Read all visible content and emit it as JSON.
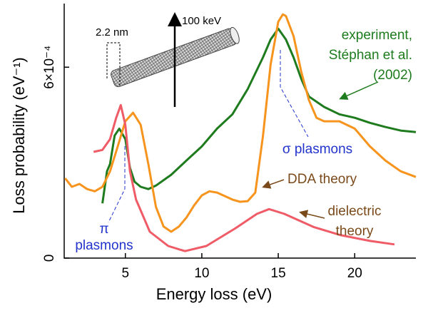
{
  "chart_data": {
    "type": "line",
    "xlabel": "Energy loss (eV)",
    "ylabel": "Loss probability (eV⁻¹)",
    "xlim": [
      1,
      24
    ],
    "xticks": [
      5,
      10,
      15,
      20
    ],
    "ylim": [
      0,
      0.0008
    ],
    "yticks": [
      0,
      {
        "value": 0.0006,
        "label": "6×10⁻⁴"
      }
    ],
    "series": [
      {
        "color": "#1e7b1e",
        "x": [
          3.5,
          3.8,
          4,
          4.3,
          4.6,
          5,
          5.3,
          5.6,
          6,
          6.5,
          7,
          8,
          9,
          10,
          11,
          12,
          13,
          14,
          14.5,
          15,
          15.5,
          16,
          16.5,
          17,
          18,
          19,
          20,
          21,
          22,
          23,
          24
        ],
        "values": [
          0.000172,
          0.000273,
          0.000296,
          0.000385,
          0.000407,
          0.000374,
          0.000284,
          0.00024,
          0.000224,
          0.000217,
          0.000228,
          0.000262,
          0.000307,
          0.000351,
          0.000407,
          0.000452,
          0.000531,
          0.000631,
          0.000687,
          0.000721,
          0.000687,
          0.000631,
          0.000564,
          0.000508,
          0.000475,
          0.000452,
          0.000441,
          0.000425,
          0.000412,
          0.000401,
          0.000396
        ]
      },
      {
        "color": "#f7941d",
        "x": [
          1.06,
          1.5,
          2,
          2.5,
          3,
          3.5,
          4,
          4.5,
          5,
          5.5,
          6,
          6.5,
          7,
          7.5,
          8,
          8.5,
          9,
          9.5,
          10,
          10.5,
          11,
          11.5,
          12,
          12.5,
          13,
          13.5,
          14,
          14.5,
          15,
          15.3,
          15.5,
          16,
          16.5,
          17,
          17.5,
          18,
          19,
          20,
          21,
          22,
          23,
          24
        ],
        "values": [
          0.000251,
          0.000224,
          0.000233,
          0.000217,
          0.00021,
          0.000224,
          0.000273,
          0.000351,
          0.00043,
          0.000457,
          0.000419,
          0.000296,
          0.000161,
          9.9e-05,
          8.3e-05,
          9.9e-05,
          0.000128,
          0.000166,
          0.000197,
          0.00021,
          0.000206,
          0.000195,
          0.000184,
          0.000177,
          0.000179,
          0.000206,
          0.000385,
          0.000609,
          0.000743,
          0.000766,
          0.000761,
          0.000698,
          0.000587,
          0.000497,
          0.000441,
          0.00043,
          0.00043,
          0.000407,
          0.000351,
          0.000307,
          0.000273,
          0.000255
        ]
      },
      {
        "color": "#ef5b66",
        "x": [
          2.92,
          3.5,
          4,
          4.4,
          4.7,
          5,
          5.3,
          5.7,
          6.6,
          7.8,
          8.9,
          10.3,
          12.2,
          13.6,
          14.4,
          15.4,
          17.3,
          19.1,
          21,
          22.6
        ],
        "values": [
          0.000334,
          0.00034,
          0.000374,
          0.000441,
          0.000481,
          0.000419,
          0.000273,
          0.000184,
          8.3e-05,
          3.8e-05,
          2.2e-05,
          3.8e-05,
          9.4e-05,
          0.000139,
          0.000154,
          0.000139,
          9.8e-05,
          7.2e-05,
          5.4e-05,
          4.3e-05
        ]
      }
    ],
    "annotations": [
      "experiment,",
      "Stéphan et al.",
      "(2002)",
      "σ plasmons",
      "DDA theory",
      "dielectric",
      "theory",
      "π",
      "plasmons",
      "100 keV",
      "2.2 nm"
    ]
  }
}
